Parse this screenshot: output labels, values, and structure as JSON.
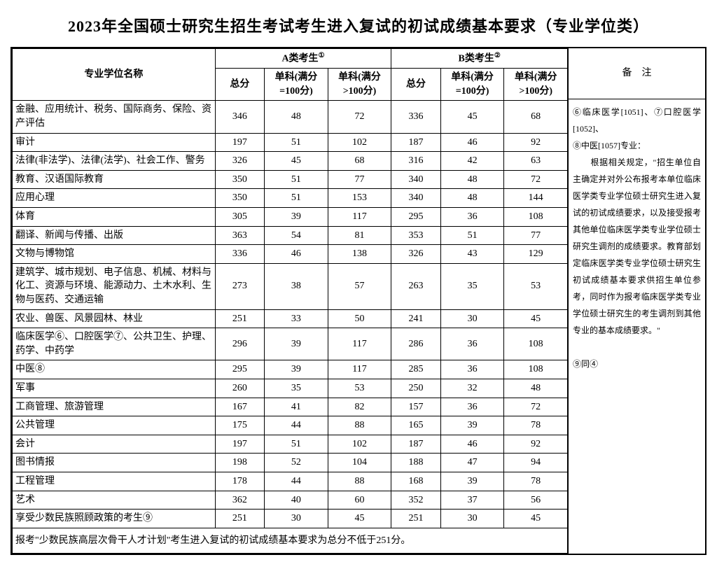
{
  "title": "2023年全国硕士研究生招生考试考生进入复试的初试成绩基本要求（专业学位类）",
  "headers": {
    "name": "专业学位名称",
    "groupA": "A类考生",
    "groupB": "B类考生",
    "remarks": "备　注",
    "total": "总分",
    "sub100": "单科(满分=100分)",
    "subOver100": "单科(满分>100分)",
    "supA": "①",
    "supB": "②"
  },
  "rows": [
    {
      "name": "金融、应用统计、税务、国际商务、保险、资产评估",
      "a": [
        346,
        48,
        72
      ],
      "b": [
        336,
        45,
        68
      ]
    },
    {
      "name": "审计",
      "a": [
        197,
        51,
        102
      ],
      "b": [
        187,
        46,
        92
      ]
    },
    {
      "name": "法律(非法学)、法律(法学)、社会工作、警务",
      "a": [
        326,
        45,
        68
      ],
      "b": [
        316,
        42,
        63
      ]
    },
    {
      "name": "教育、汉语国际教育",
      "a": [
        350,
        51,
        77
      ],
      "b": [
        340,
        48,
        72
      ]
    },
    {
      "name": "应用心理",
      "a": [
        350,
        51,
        153
      ],
      "b": [
        340,
        48,
        144
      ]
    },
    {
      "name": "体育",
      "a": [
        305,
        39,
        117
      ],
      "b": [
        295,
        36,
        108
      ]
    },
    {
      "name": "翻译、新闻与传播、出版",
      "a": [
        363,
        54,
        81
      ],
      "b": [
        353,
        51,
        77
      ]
    },
    {
      "name": "文物与博物馆",
      "a": [
        336,
        46,
        138
      ],
      "b": [
        326,
        43,
        129
      ]
    },
    {
      "name": "建筑学、城市规划、电子信息、机械、材料与化工、资源与环境、能源动力、土木水利、生物与医药、交通运输",
      "a": [
        273,
        38,
        57
      ],
      "b": [
        263,
        35,
        53
      ]
    },
    {
      "name": "农业、兽医、风景园林、林业",
      "a": [
        251,
        33,
        50
      ],
      "b": [
        241,
        30,
        45
      ]
    },
    {
      "name": "临床医学⑥、口腔医学⑦、公共卫生、护理、药学、中药学",
      "a": [
        296,
        39,
        117
      ],
      "b": [
        286,
        36,
        108
      ]
    },
    {
      "name": "中医⑧",
      "a": [
        295,
        39,
        117
      ],
      "b": [
        285,
        36,
        108
      ]
    },
    {
      "name": "军事",
      "a": [
        260,
        35,
        53
      ],
      "b": [
        250,
        32,
        48
      ]
    },
    {
      "name": "工商管理、旅游管理",
      "a": [
        167,
        41,
        82
      ],
      "b": [
        157,
        36,
        72
      ]
    },
    {
      "name": "公共管理",
      "a": [
        175,
        44,
        88
      ],
      "b": [
        165,
        39,
        78
      ]
    },
    {
      "name": "会计",
      "a": [
        197,
        51,
        102
      ],
      "b": [
        187,
        46,
        92
      ]
    },
    {
      "name": "图书情报",
      "a": [
        198,
        52,
        104
      ],
      "b": [
        188,
        47,
        94
      ]
    },
    {
      "name": "工程管理",
      "a": [
        178,
        44,
        88
      ],
      "b": [
        168,
        39,
        78
      ]
    },
    {
      "name": "艺术",
      "a": [
        362,
        40,
        60
      ],
      "b": [
        352,
        37,
        56
      ]
    },
    {
      "name": "享受少数民族照顾政策的考生⑨",
      "a": [
        251,
        30,
        45
      ],
      "b": [
        251,
        30,
        45
      ]
    }
  ],
  "footnote": "报考\"少数民族高层次骨干人才计划\"考生进入复试的初试成绩基本要求为总分不低于251分。",
  "remarks_lines": [
    "⑥临床医学[1051]、⑦口腔医学[1052]、",
    "⑧中医[1057]专业：",
    "　　根据相关规定，\"招生单位自主确定并对外公布报考本单位临床医学类专业学位硕士研究生进入复试的初试成绩要求，以及接受报考其他单位临床医学类专业学位硕士研究生调剂的成绩要求。教育部划定临床医学类专业学位硕士研究生初试成绩基本要求供招生单位参考，同时作为报考临床医学类专业学位硕士研究生的考生调剂到其他专业的基本成绩要求。\"",
    "",
    "⑨同④"
  ]
}
